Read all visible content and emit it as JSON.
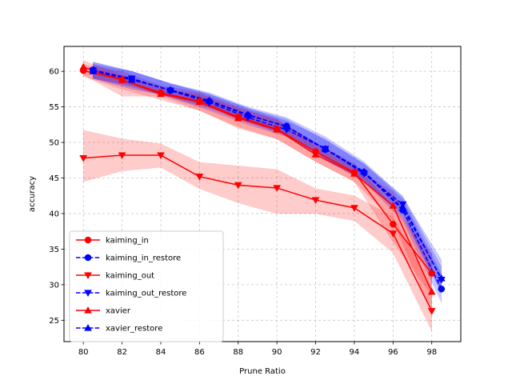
{
  "chart_data": {
    "type": "line",
    "title": "",
    "xlabel": "Prune Ratio",
    "ylabel": "accuracy",
    "xlim": [
      79,
      99.5
    ],
    "ylim": [
      22,
      63.5
    ],
    "xticks": [
      80,
      82,
      84,
      86,
      88,
      90,
      92,
      94,
      96,
      98
    ],
    "yticks": [
      25,
      30,
      35,
      40,
      45,
      50,
      55,
      60
    ],
    "grid": true,
    "legend_position": "lower-left",
    "series": [
      {
        "name": "kaiming_in",
        "color": "#ff0000",
        "linestyle": "solid",
        "marker": "circle",
        "x": [
          80,
          82,
          84,
          86,
          88,
          90,
          92,
          94,
          96,
          98
        ],
        "y": [
          60.1,
          58.8,
          57.0,
          55.8,
          53.6,
          51.9,
          48.7,
          45.8,
          38.5,
          31.6
        ],
        "band_low": [
          59.3,
          57.5,
          56.0,
          54.5,
          52.2,
          50.5,
          47.3,
          44.5,
          36.0,
          28.5
        ],
        "band_high": [
          60.9,
          60.0,
          58.0,
          57.0,
          55.0,
          53.2,
          50.0,
          47.0,
          41.0,
          34.5
        ]
      },
      {
        "name": "kaiming_in_restore",
        "color": "#0000ff",
        "linestyle": "dashed",
        "marker": "circle",
        "x": [
          80.5,
          82.5,
          84.5,
          86.5,
          88.5,
          90.5,
          92.5,
          94.5,
          96.5,
          98.5
        ],
        "y": [
          60.2,
          58.9,
          57.3,
          55.8,
          53.8,
          52.3,
          49.0,
          45.8,
          40.5,
          29.4
        ],
        "band_low": [
          59.0,
          57.8,
          56.3,
          54.8,
          52.8,
          51.0,
          47.5,
          44.5,
          39.0,
          27.5
        ],
        "band_high": [
          61.3,
          60.0,
          58.2,
          56.8,
          54.8,
          53.3,
          50.3,
          47.0,
          42.0,
          31.5
        ]
      },
      {
        "name": "kaiming_out",
        "color": "#ff0000",
        "linestyle": "solid",
        "marker": "triangle_down",
        "x": [
          80,
          82,
          84,
          86,
          88,
          90,
          92,
          94,
          96,
          98
        ],
        "y": [
          47.8,
          48.2,
          48.2,
          45.2,
          44.0,
          43.6,
          41.9,
          40.8,
          37.2,
          26.3
        ],
        "band_low": [
          44.5,
          46.0,
          46.5,
          43.5,
          41.5,
          40.0,
          40.0,
          39.0,
          34.5,
          23.5
        ],
        "band_high": [
          51.7,
          50.5,
          49.8,
          47.2,
          46.7,
          46.2,
          43.5,
          42.5,
          39.5,
          29.5
        ]
      },
      {
        "name": "kaiming_out_restore",
        "color": "#0000ff",
        "linestyle": "dashed",
        "marker": "triangle_down",
        "x": [
          80.5,
          82.5,
          84.5,
          86.5,
          88.5,
          90.5,
          92.5,
          94.5,
          96.5,
          98.5
        ],
        "y": [
          60.1,
          59.0,
          57.3,
          55.6,
          53.5,
          51.8,
          49.1,
          45.6,
          41.3,
          30.7
        ],
        "band_low": [
          59.0,
          58.0,
          56.3,
          54.5,
          52.5,
          50.8,
          47.8,
          44.5,
          40.0,
          28.8
        ],
        "band_high": [
          61.3,
          60.0,
          58.3,
          56.8,
          54.8,
          53.0,
          50.5,
          47.0,
          42.5,
          32.5
        ]
      },
      {
        "name": "xavier",
        "color": "#ff0000",
        "linestyle": "solid",
        "marker": "triangle_up",
        "x": [
          80,
          82,
          84,
          86,
          88,
          90,
          92,
          94,
          96,
          98
        ],
        "y": [
          60.6,
          58.8,
          56.8,
          55.7,
          53.4,
          51.8,
          48.3,
          45.6,
          41.1,
          29.0
        ],
        "band_low": [
          59.5,
          56.5,
          56.5,
          54.5,
          52.0,
          50.5,
          47.3,
          44.5,
          39.0,
          26.0
        ],
        "band_high": [
          61.5,
          59.5,
          57.5,
          56.8,
          54.8,
          53.2,
          49.5,
          46.5,
          43.0,
          32.5
        ]
      },
      {
        "name": "xavier_restore",
        "color": "#0000ff",
        "linestyle": "dashed",
        "marker": "triangle_up",
        "x": [
          80.5,
          82.5,
          84.5,
          86.5,
          88.5,
          90.5,
          92.5,
          94.5,
          96.5,
          98.5
        ],
        "y": [
          60.0,
          58.8,
          57.4,
          55.9,
          53.9,
          52.2,
          49.1,
          45.9,
          40.8,
          30.9
        ],
        "band_low": [
          59.0,
          57.5,
          56.5,
          55.0,
          53.0,
          51.0,
          47.8,
          44.8,
          39.5,
          29.0
        ],
        "band_high": [
          61.0,
          60.0,
          58.3,
          57.0,
          55.0,
          53.5,
          50.8,
          47.3,
          42.3,
          33.5
        ]
      }
    ]
  }
}
